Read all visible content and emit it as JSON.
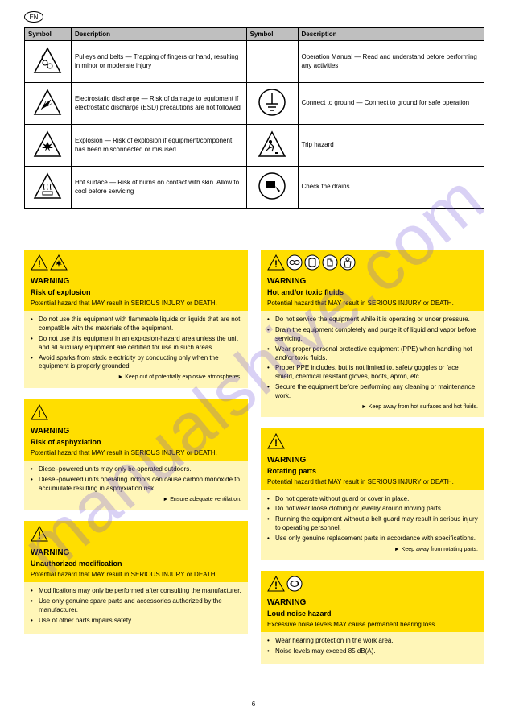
{
  "page_badge": "EN",
  "watermark": "manualshive.com",
  "footer": "6",
  "table": {
    "headers": [
      "Symbol",
      "Description",
      "Symbol",
      "Description"
    ],
    "rows": [
      {
        "icon1": "pulley",
        "desc1": "Pulleys and belts — Trapping of fingers or hand, resulting in minor or moderate injury",
        "icon2": "",
        "desc2": "Operation Manual — Read and understand before performing any activities"
      },
      {
        "icon1": "esd",
        "desc1": "Electrostatic discharge — Risk of damage to equipment if electrostatic discharge (ESD) precautions are not followed",
        "icon2": "ground",
        "desc2": "Connect to ground — Connect to ground for safe operation"
      },
      {
        "icon1": "explosion",
        "desc1": "Explosion — Risk of explosion if equipment/component has been misconnected or misused",
        "icon2": "trip",
        "desc2": "Trip hazard"
      },
      {
        "icon1": "hot",
        "desc1": "Hot surface — Risk of burns on contact with skin. Allow to cool before servicing",
        "icon2": "drain",
        "desc2": "Check the drains"
      }
    ]
  },
  "left": [
    {
      "icons": [
        "alert",
        "explosion"
      ],
      "title": "WARNING",
      "sub": "Risk of explosion",
      "lead": "Potential hazard that MAY result in SERIOUS INJURY or DEATH.",
      "items": [
        "Do not use this equipment with flammable liquids or liquids that are not compatible with the materials of the equipment.",
        "Do not use this equipment in an explosion-hazard area unless the unit and all auxiliary equipment are certified for use in such areas.",
        "Avoid sparks from static electricity by conducting only when the equipment is properly grounded."
      ],
      "keepout": "► Keep out of potentially explosive atmospheres."
    },
    {
      "icons": [
        "alert"
      ],
      "title": "WARNING",
      "sub": "Risk of asphyxiation",
      "lead": "Potential hazard that MAY result in SERIOUS INJURY or DEATH.",
      "items": [
        "Diesel-powered units may only be operated outdoors.",
        "Diesel-powered units operating indoors can cause carbon monoxide to accumulate resulting in asphyxiation risk."
      ],
      "keepout": "► Ensure adequate ventilation."
    },
    {
      "icons": [
        "alert"
      ],
      "title": "WARNING",
      "sub": "Unauthorized modification",
      "lead": "Potential hazard that MAY result in SERIOUS INJURY or DEATH.",
      "items": [
        "Modifications may only be performed after consulting the manufacturer.",
        "Use only genuine spare parts and accessories authorized by the manufacturer.",
        "Use of other parts impairs safety."
      ]
    }
  ],
  "right": [
    {
      "icons": [
        "alert",
        "goggles",
        "face",
        "gloves",
        "suit"
      ],
      "title": "WARNING",
      "sub": "Hot and/or toxic fluids",
      "lead": "Potential hazard that MAY result in SERIOUS INJURY or DEATH.",
      "items": [
        "Do not service the equipment while it is operating or under pressure.",
        "Drain the equipment completely and purge it of liquid and vapor before servicing.",
        "Wear proper personal protective equipment (PPE) when handling hot and/or toxic fluids.",
        "Proper PPE includes, but is not limited to, safety goggles or face shield, chemical resistant gloves, boots, apron, etc.",
        "Secure the equipment before performing any cleaning or maintenance work."
      ],
      "keepout": "► Keep away from hot surfaces and hot fluids."
    },
    {
      "icons": [
        "alert"
      ],
      "title": "WARNING",
      "sub": "Rotating parts",
      "lead": "Potential hazard that MAY result in SERIOUS INJURY or DEATH.",
      "items": [
        "Do not operate without guard or cover in place.",
        "Do not wear loose clothing or jewelry around moving parts.",
        "Running the equipment without a belt guard may result in serious injury to operating personnel.",
        "Use only genuine replacement parts in accordance with specifications."
      ],
      "keepout": "► Keep away from rotating parts."
    },
    {
      "icons": [
        "alert",
        "ear"
      ],
      "title": "WARNING",
      "sub": "Loud noise hazard",
      "lead": "Excessive noise levels MAY cause permanent hearing loss",
      "items": [
        "Wear hearing protection in the work area.",
        "Noise levels may exceed 85 dB(A)."
      ]
    }
  ]
}
